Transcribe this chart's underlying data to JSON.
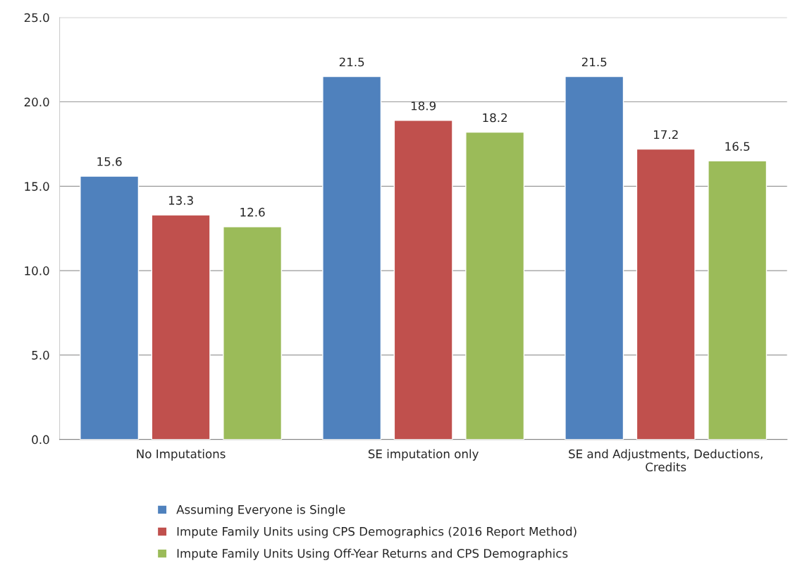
{
  "chart_data": {
    "type": "bar",
    "categories": [
      "No Imputations",
      "SE imputation only",
      "SE and Adjustments, Deductions,\nCredits"
    ],
    "series": [
      {
        "name": "Assuming Everyone is Single",
        "color": "#4f81bd",
        "values": [
          15.6,
          21.5,
          21.5
        ]
      },
      {
        "name": "Impute Family Units using CPS Demographics (2016 Report Method)",
        "color": "#c0504d",
        "values": [
          13.3,
          18.9,
          17.2
        ]
      },
      {
        "name": "Impute Family Units Using Off-Year Returns and CPS Demographics",
        "color": "#9bbb59",
        "values": [
          12.6,
          18.2,
          16.5
        ]
      }
    ],
    "ylim": [
      0,
      25
    ],
    "yticks": [
      {
        "value": 0,
        "label": "0.0"
      },
      {
        "value": 5,
        "label": "5.0"
      },
      {
        "value": 10,
        "label": "10.0"
      },
      {
        "value": 15,
        "label": "15.0"
      },
      {
        "value": 20,
        "label": "20.0"
      },
      {
        "value": 25,
        "label": "25.0"
      }
    ],
    "grid": "y",
    "data_labels": true,
    "legend": "bottom"
  }
}
